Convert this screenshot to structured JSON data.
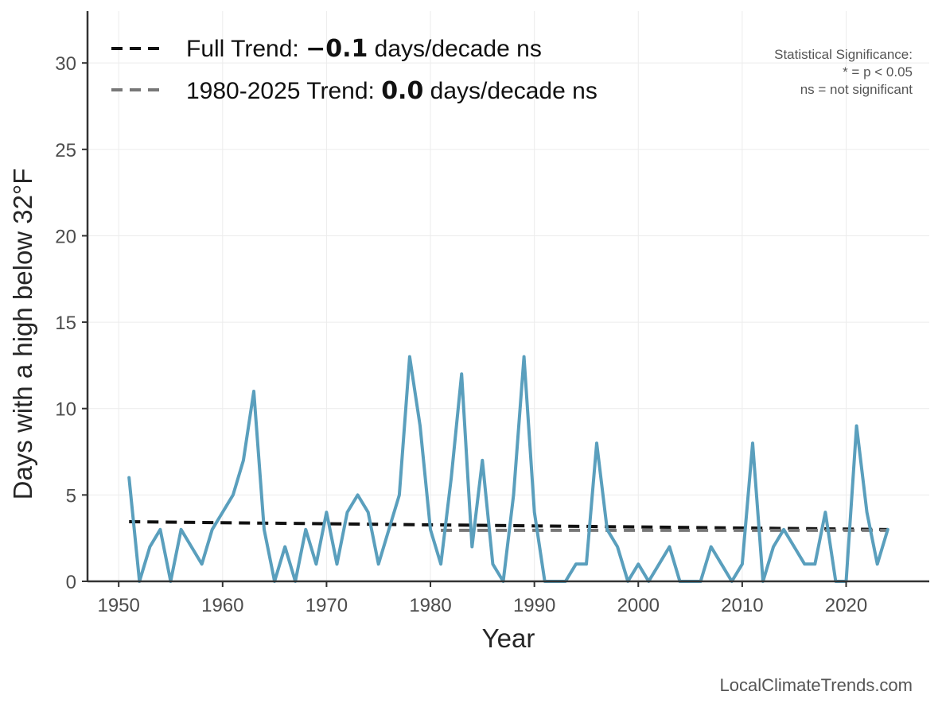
{
  "chart_data": {
    "type": "line",
    "xlabel": "Year",
    "ylabel": "Days with a high below 32°F",
    "xlim": [
      1947,
      2028
    ],
    "ylim": [
      0,
      33
    ],
    "xticks": [
      1950,
      1960,
      1970,
      1980,
      1990,
      2000,
      2010,
      2020
    ],
    "yticks": [
      0,
      5,
      10,
      15,
      20,
      25,
      30
    ],
    "grid": true,
    "legend_position": "top-left",
    "series": [
      {
        "color": "#5a9fbd",
        "x": [
          1951,
          1952,
          1953,
          1954,
          1955,
          1956,
          1957,
          1958,
          1959,
          1960,
          1961,
          1962,
          1963,
          1964,
          1965,
          1966,
          1967,
          1968,
          1969,
          1970,
          1971,
          1972,
          1973,
          1974,
          1975,
          1976,
          1977,
          1978,
          1979,
          1980,
          1981,
          1982,
          1983,
          1984,
          1985,
          1986,
          1987,
          1988,
          1989,
          1990,
          1991,
          1992,
          1993,
          1994,
          1995,
          1996,
          1997,
          1998,
          1999,
          2000,
          2001,
          2002,
          2003,
          2004,
          2005,
          2006,
          2007,
          2008,
          2009,
          2010,
          2011,
          2012,
          2013,
          2014,
          2015,
          2016,
          2017,
          2018,
          2019,
          2020,
          2021,
          2022,
          2023,
          2024
        ],
        "values": [
          6,
          0,
          2,
          3,
          0,
          3,
          2,
          1,
          3,
          4,
          5,
          7,
          11,
          3,
          0,
          2,
          0,
          3,
          1,
          4,
          1,
          4,
          5,
          4,
          1,
          3,
          5,
          13,
          9,
          3,
          1,
          6,
          12,
          2,
          7,
          1,
          0,
          5,
          13,
          4,
          0,
          0,
          0,
          1,
          1,
          8,
          3,
          2,
          0,
          1,
          0,
          1,
          2,
          0,
          0,
          0,
          2,
          1,
          0,
          1,
          8,
          0,
          2,
          3,
          2,
          1,
          1,
          4,
          0,
          0,
          9,
          4,
          1,
          3
        ]
      }
    ],
    "trend_lines": [
      {
        "name": "Full Trend",
        "x": [
          1951,
          2024
        ],
        "y": [
          3.45,
          3.0
        ],
        "color": "#111111",
        "dash": "14,9"
      },
      {
        "name": "1980-2025 Trend",
        "x": [
          1981,
          2024
        ],
        "y": [
          2.95,
          2.95
        ],
        "color": "#777777",
        "dash": "14,9"
      }
    ],
    "legend": [
      {
        "prefix": "Full Trend: ",
        "value": "−0.1",
        "suffix": " days/decade ns",
        "color": "#111111"
      },
      {
        "prefix": "1980-2025 Trend: ",
        "value": "0.0",
        "suffix": " days/decade ns",
        "color": "#777777"
      }
    ],
    "significance_note": [
      "Statistical Significance:",
      "* = p < 0.05",
      "ns = not significant"
    ],
    "watermark": "LocalClimateTrends.com"
  }
}
